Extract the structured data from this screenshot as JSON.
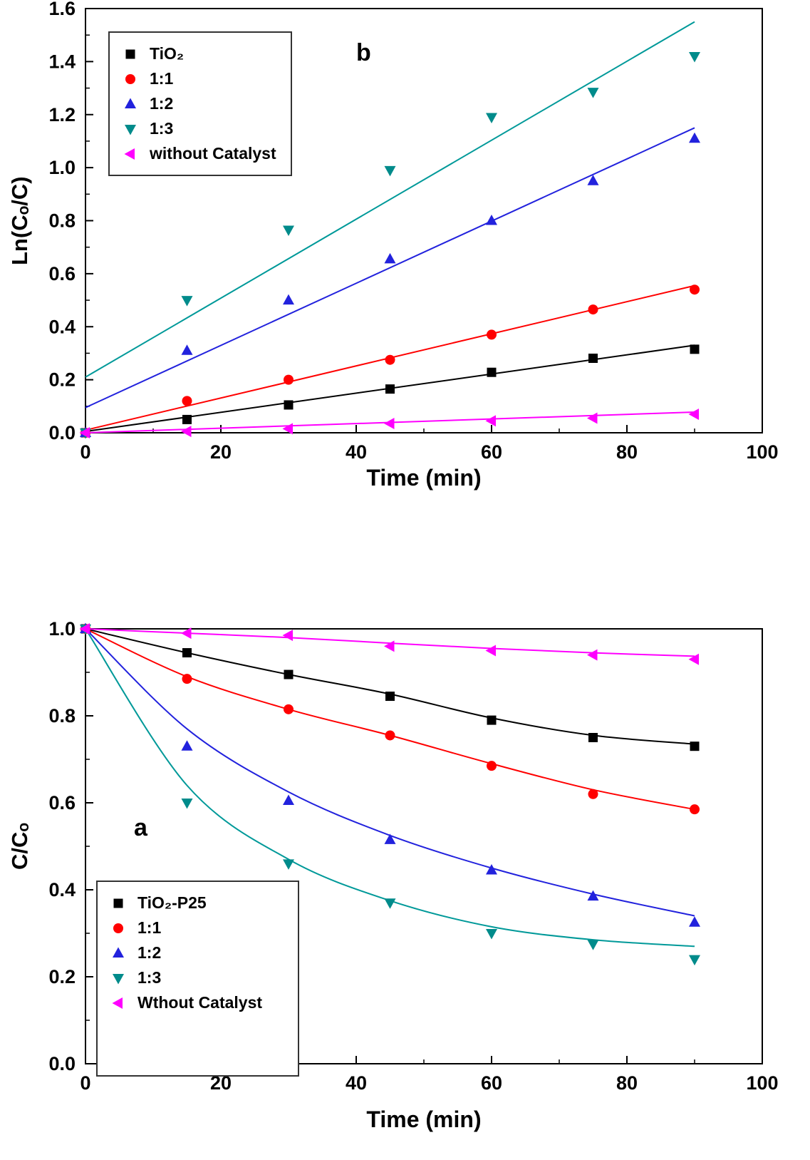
{
  "figure": {
    "background": "#ffffff"
  },
  "chart_data": [
    {
      "id": "chart-b",
      "type": "scatter",
      "panel_label": "b",
      "xlabel": "Time (min)",
      "ylabel": "Ln(Cₒ/C)",
      "xlim": [
        0,
        100
      ],
      "ylim": [
        0,
        1.6
      ],
      "xticks": [
        0,
        20,
        40,
        60,
        80,
        100
      ],
      "xtick_labels": [
        "0",
        "20",
        "40",
        "60",
        "80",
        "100"
      ],
      "yticks": [
        0,
        0.2,
        0.4,
        0.6,
        0.8,
        1.0,
        1.2,
        1.4,
        1.6
      ],
      "ytick_labels": [
        "0.0",
        "0.2",
        "0.4",
        "0.6",
        "0.8",
        "1.0",
        "1.2",
        "1.4",
        "1.6"
      ],
      "grid": false,
      "legend_position": "top-left",
      "x": [
        0,
        15,
        30,
        45,
        60,
        75,
        90
      ],
      "series": [
        {
          "name": "TiO₂",
          "marker": "square",
          "color": "#000000",
          "line_color": "#000000",
          "values": [
            0,
            0.05,
            0.105,
            0.165,
            0.228,
            0.281,
            0.315
          ],
          "fit": {
            "type": "linear",
            "x": [
              0,
              90
            ],
            "y": [
              0.005,
              0.33
            ]
          }
        },
        {
          "name": "1:1",
          "marker": "circle",
          "color": "#ff0000",
          "line_color": "#ff0000",
          "values": [
            0,
            0.12,
            0.2,
            0.275,
            0.37,
            0.465,
            0.54
          ],
          "fit": {
            "type": "linear",
            "x": [
              0,
              90
            ],
            "y": [
              0.01,
              0.555
            ]
          }
        },
        {
          "name": "1:2",
          "marker": "triangle-up",
          "color": "#2222dd",
          "line_color": "#2222dd",
          "values": [
            0,
            0.31,
            0.5,
            0.655,
            0.8,
            0.95,
            1.11
          ],
          "fit": {
            "type": "linear",
            "x": [
              0,
              90
            ],
            "y": [
              0.095,
              1.15
            ]
          }
        },
        {
          "name": "1:3",
          "marker": "triangle-down",
          "color": "#008b8b",
          "line_color": "#009999",
          "values": [
            0,
            0.5,
            0.765,
            0.99,
            1.19,
            1.285,
            1.42
          ],
          "fit": {
            "type": "linear",
            "x": [
              0,
              90
            ],
            "y": [
              0.21,
              1.55
            ]
          }
        },
        {
          "name": "without Catalyst",
          "marker": "triangle-left",
          "color": "#ff00ff",
          "line_color": "#ff00ff",
          "values": [
            0,
            0.005,
            0.015,
            0.035,
            0.045,
            0.055,
            0.07
          ],
          "fit": {
            "type": "linear",
            "x": [
              0,
              90
            ],
            "y": [
              0,
              0.078
            ]
          }
        }
      ]
    },
    {
      "id": "chart-a",
      "type": "scatter",
      "panel_label": "a",
      "xlabel": "Time (min)",
      "ylabel": "C/Cₒ",
      "xlim": [
        0,
        100
      ],
      "ylim": [
        0,
        1.0
      ],
      "xticks": [
        0,
        20,
        40,
        60,
        80,
        100
      ],
      "xtick_labels": [
        "0",
        "20",
        "40",
        "60",
        "80",
        "100"
      ],
      "yticks": [
        0,
        0.2,
        0.4,
        0.6,
        0.8,
        1.0
      ],
      "ytick_labels": [
        "0.0",
        "0.2",
        "0.4",
        "0.6",
        "0.8",
        "1.0"
      ],
      "grid": false,
      "legend_position": "bottom-left",
      "x": [
        0,
        15,
        30,
        45,
        60,
        75,
        90
      ],
      "series": [
        {
          "name": "TiO₂-P25",
          "marker": "square",
          "color": "#000000",
          "line_color": "#000000",
          "values": [
            1.0,
            0.945,
            0.895,
            0.845,
            0.79,
            0.75,
            0.73
          ],
          "fit": {
            "type": "spline",
            "points": [
              [
                0,
                1
              ],
              [
                15,
                0.945
              ],
              [
                30,
                0.895
              ],
              [
                45,
                0.85
              ],
              [
                60,
                0.795
              ],
              [
                75,
                0.755
              ],
              [
                90,
                0.735
              ]
            ]
          }
        },
        {
          "name": "1:1",
          "marker": "circle",
          "color": "#ff0000",
          "line_color": "#ff0000",
          "values": [
            1.0,
            0.885,
            0.815,
            0.755,
            0.685,
            0.62,
            0.585
          ],
          "fit": {
            "type": "spline",
            "points": [
              [
                0,
                1
              ],
              [
                15,
                0.89
              ],
              [
                30,
                0.815
              ],
              [
                45,
                0.755
              ],
              [
                60,
                0.69
              ],
              [
                75,
                0.63
              ],
              [
                90,
                0.585
              ]
            ]
          }
        },
        {
          "name": "1:2",
          "marker": "triangle-up",
          "color": "#2222dd",
          "line_color": "#2222dd",
          "values": [
            1.0,
            0.73,
            0.605,
            0.515,
            0.445,
            0.385,
            0.325
          ],
          "fit": {
            "type": "spline",
            "points": [
              [
                0,
                1
              ],
              [
                15,
                0.77
              ],
              [
                30,
                0.625
              ],
              [
                45,
                0.525
              ],
              [
                60,
                0.45
              ],
              [
                75,
                0.39
              ],
              [
                90,
                0.34
              ]
            ]
          }
        },
        {
          "name": "1:3",
          "marker": "triangle-down",
          "color": "#008b8b",
          "line_color": "#009999",
          "values": [
            1.0,
            0.6,
            0.46,
            0.37,
            0.3,
            0.275,
            0.24
          ],
          "fit": {
            "type": "spline",
            "points": [
              [
                0,
                1
              ],
              [
                15,
                0.64
              ],
              [
                30,
                0.47
              ],
              [
                45,
                0.375
              ],
              [
                60,
                0.315
              ],
              [
                75,
                0.285
              ],
              [
                90,
                0.27
              ]
            ]
          }
        },
        {
          "name": "Wthout Catalyst",
          "marker": "triangle-left",
          "color": "#ff00ff",
          "line_color": "#ff00ff",
          "values": [
            1.0,
            0.99,
            0.985,
            0.96,
            0.95,
            0.94,
            0.93
          ],
          "fit": {
            "type": "spline",
            "points": [
              [
                0,
                1
              ],
              [
                15,
                0.99
              ],
              [
                30,
                0.98
              ],
              [
                45,
                0.967
              ],
              [
                60,
                0.955
              ],
              [
                75,
                0.945
              ],
              [
                90,
                0.937
              ]
            ]
          }
        }
      ]
    }
  ]
}
